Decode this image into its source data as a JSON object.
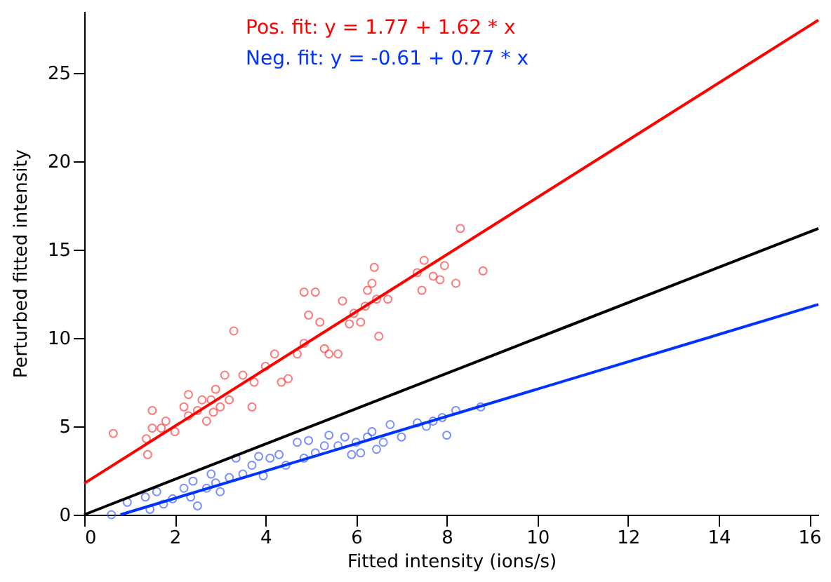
{
  "chart_data": {
    "type": "scatter",
    "xlabel": "Fitted intensity (ions/s)",
    "ylabel": "Perturbed fitted intensity",
    "xlim": [
      0,
      16.2
    ],
    "ylim": [
      0,
      28.5
    ],
    "xticks": [
      0,
      2,
      4,
      6,
      8,
      10,
      12,
      14,
      16
    ],
    "yticks": [
      0,
      5,
      10,
      15,
      20,
      25
    ],
    "grid": false,
    "series": [
      {
        "marker": "circle",
        "color": "#ff4040",
        "x": [
          0.64,
          1.37,
          1.5,
          1.5,
          1.4,
          1.7,
          1.8,
          2.0,
          2.2,
          2.3,
          2.3,
          2.5,
          2.6,
          2.7,
          2.8,
          2.85,
          2.9,
          3.0,
          3.1,
          3.2,
          3.3,
          3.5,
          3.7,
          3.75,
          4.0,
          4.2,
          4.35,
          4.5,
          4.7,
          4.85,
          5.1,
          4.85,
          4.95,
          5.2,
          5.3,
          5.4,
          5.6,
          5.7,
          5.85,
          5.95,
          6.1,
          6.2,
          6.25,
          6.35,
          6.4,
          6.45,
          6.5,
          6.7,
          7.35,
          7.5,
          7.7,
          7.85,
          8.3,
          8.2,
          8.8,
          7.95,
          7.45
        ],
        "values": [
          4.6,
          4.3,
          4.9,
          5.9,
          3.4,
          4.9,
          5.3,
          4.7,
          6.1,
          6.8,
          5.6,
          5.9,
          6.5,
          5.3,
          6.5,
          5.8,
          7.1,
          6.1,
          7.9,
          6.5,
          10.4,
          7.9,
          6.1,
          7.5,
          8.4,
          9.1,
          7.5,
          7.7,
          9.1,
          12.6,
          12.6,
          9.7,
          11.3,
          10.9,
          9.4,
          9.1,
          9.1,
          12.1,
          10.8,
          11.4,
          10.9,
          11.8,
          12.7,
          13.1,
          14.0,
          12.2,
          10.1,
          12.2,
          13.7,
          14.4,
          13.5,
          13.3,
          16.2,
          13.1,
          13.8,
          14.1,
          12.7
        ]
      },
      {
        "marker": "circle",
        "color": "#4060ff",
        "x": [
          0.6,
          0.95,
          1.35,
          1.45,
          1.6,
          1.75,
          1.95,
          2.2,
          2.35,
          2.4,
          2.5,
          2.7,
          2.8,
          2.9,
          3.0,
          3.2,
          3.35,
          3.5,
          3.7,
          3.85,
          3.95,
          4.1,
          4.3,
          4.45,
          4.7,
          4.85,
          4.95,
          5.1,
          5.3,
          5.4,
          5.6,
          5.75,
          5.9,
          6.0,
          6.1,
          6.25,
          6.35,
          6.45,
          6.6,
          6.75,
          7.0,
          7.35,
          7.55,
          7.7,
          7.9,
          8.0,
          8.2,
          8.75
        ],
        "values": [
          0,
          0.7,
          1.0,
          0.3,
          1.3,
          0.6,
          0.9,
          1.5,
          1.0,
          1.9,
          0.5,
          1.5,
          2.3,
          1.8,
          1.3,
          2.1,
          3.2,
          2.3,
          2.8,
          3.3,
          2.2,
          3.2,
          3.4,
          2.8,
          4.1,
          3.2,
          4.2,
          3.5,
          3.9,
          4.5,
          3.9,
          4.4,
          3.4,
          4.1,
          3.5,
          4.4,
          4.7,
          3.7,
          4.1,
          5.1,
          4.4,
          5.2,
          5.0,
          5.3,
          5.5,
          4.5,
          5.9,
          6.1
        ]
      },
      {
        "type": "line",
        "name": "Pos. fit: y = 1.77 + 1.62 * x",
        "color": "#ff0000",
        "x": [
          0,
          16.2
        ],
        "values": [
          1.77,
          28.0
        ]
      },
      {
        "type": "line",
        "name": "Neg. fit: y = -0.61 + 0.77 * x",
        "color": "#0033ff",
        "x": [
          0.8,
          16.2
        ],
        "values": [
          0,
          11.9
        ]
      },
      {
        "type": "line",
        "color": "#000000",
        "x": [
          0,
          16.2
        ],
        "values": [
          0,
          16.2
        ]
      }
    ]
  }
}
